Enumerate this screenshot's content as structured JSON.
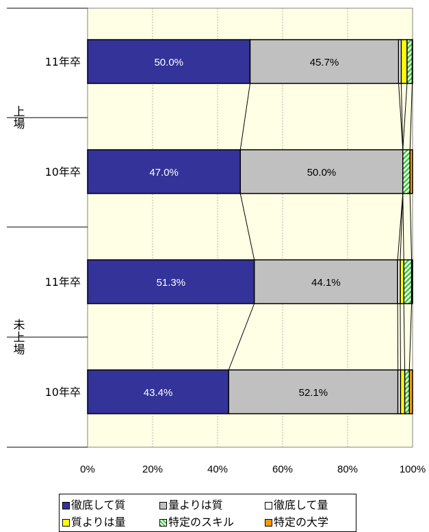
{
  "chart_data": {
    "type": "bar",
    "stacked_percent": true,
    "orientation": "horizontal",
    "groups": [
      {
        "label": "上場",
        "bars": [
          "11年卒",
          "10年卒"
        ]
      },
      {
        "label": "未上場",
        "bars": [
          "11年卒",
          "10年卒"
        ]
      }
    ],
    "categories": [
      "11年卒",
      "10年卒",
      "11年卒",
      "10年卒"
    ],
    "series": [
      {
        "name": "徹底して質",
        "color": "#333399",
        "values": [
          50.0,
          47.0,
          51.3,
          43.4
        ],
        "labels": [
          "50.0%",
          "47.0%",
          "51.3%",
          "43.4%"
        ]
      },
      {
        "name": "量よりは質",
        "color": "#c0c0c0",
        "values": [
          45.7,
          50.0,
          44.1,
          52.1
        ],
        "labels": [
          "45.7%",
          "50.0%",
          "44.1%",
          "52.1%"
        ]
      },
      {
        "name": "徹底して量",
        "color": "#ffffff",
        "values": [
          0.8,
          0.0,
          0.8,
          0.8
        ],
        "labels": [
          "",
          "",
          "",
          ""
        ]
      },
      {
        "name": "質よりは量",
        "color": "#ffff00",
        "values": [
          1.8,
          0.0,
          1.1,
          1.3
        ],
        "labels": [
          "",
          "",
          "",
          ""
        ]
      },
      {
        "name": "特定のスキル",
        "color": "#33cc33",
        "values": [
          1.6,
          2.2,
          2.4,
          1.4
        ],
        "labels": [
          "",
          "",
          "",
          ""
        ],
        "pattern": "hatch"
      },
      {
        "name": "特定の大学",
        "color": "#ff9900",
        "values": [
          0.1,
          0.8,
          0.3,
          1.0
        ],
        "labels": [
          "",
          "",
          "",
          ""
        ]
      }
    ],
    "x_ticks": [
      "0%",
      "20%",
      "40%",
      "60%",
      "80%",
      "100%"
    ],
    "xlim": [
      0,
      100
    ],
    "plot_background": "#ffffe5",
    "legend_position": "bottom",
    "series_lines": true
  },
  "legend": {
    "items": [
      {
        "name": "徹底して質",
        "color": "#333399"
      },
      {
        "name": "量よりは質",
        "color": "#c0c0c0"
      },
      {
        "name": "徹底して量",
        "color": "#ffffff"
      },
      {
        "name": "質よりは量",
        "color": "#ffff00"
      },
      {
        "name": "特定のスキル",
        "color": "#33cc33"
      },
      {
        "name": "特定の大学",
        "color": "#ff9900"
      }
    ]
  }
}
